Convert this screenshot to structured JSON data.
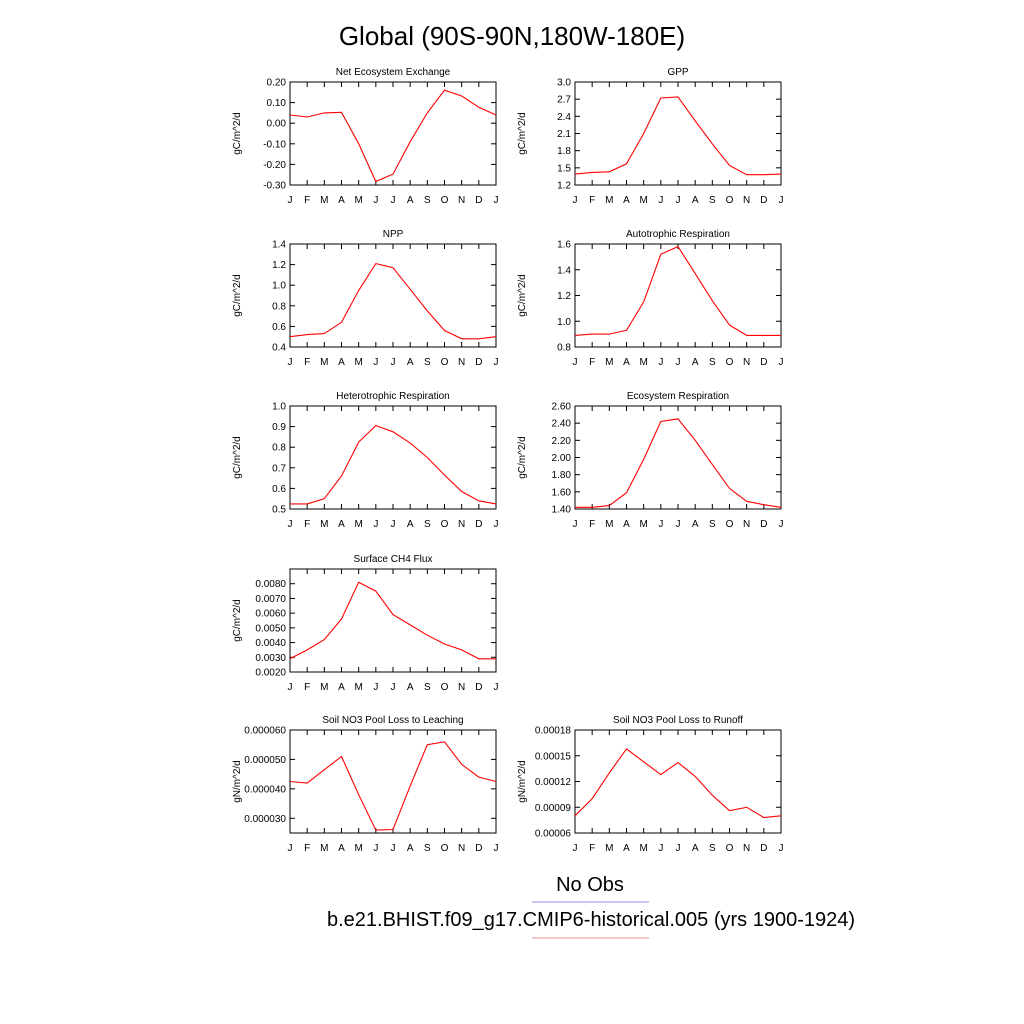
{
  "figure": {
    "title": "Global (90S-90N,180W-180E)",
    "legend": {
      "entries": [
        {
          "label": "No Obs",
          "color": "#8c8cf0"
        },
        {
          "label": "b.e21.BHIST.f09_g17.CMIP6-historical.005 (yrs 1900-1924)",
          "color": "#f08c8c"
        }
      ]
    }
  },
  "chart_data": [
    {
      "type": "line",
      "title": "Net Ecosystem Exchange",
      "ylabel": "gC/m^2/d",
      "x": [
        "J",
        "F",
        "M",
        "A",
        "M",
        "J",
        "J",
        "A",
        "S",
        "O",
        "N",
        "D",
        "J"
      ],
      "ylim": [
        -0.3,
        0.2
      ],
      "yticks": [
        "0.20",
        "0.10",
        "0.00",
        "-0.10",
        "-0.20",
        "-0.30"
      ],
      "series": [
        {
          "values": [
            0.04,
            0.03,
            0.05,
            0.053,
            -0.1,
            -0.283,
            -0.247,
            -0.09,
            0.05,
            0.16,
            0.132,
            0.077,
            0.04
          ],
          "color": "#ff0000"
        }
      ]
    },
    {
      "type": "line",
      "title": "GPP",
      "ylabel": "gC/m^2/d",
      "x": [
        "J",
        "F",
        "M",
        "A",
        "M",
        "J",
        "J",
        "A",
        "S",
        "O",
        "N",
        "D",
        "J"
      ],
      "ylim": [
        1.2,
        3.0
      ],
      "yticks": [
        "3.0",
        "2.7",
        "2.4",
        "2.1",
        "1.8",
        "1.5",
        "1.2"
      ],
      "series": [
        {
          "values": [
            1.39,
            1.42,
            1.43,
            1.57,
            2.1,
            2.72,
            2.74,
            2.32,
            1.92,
            1.54,
            1.38,
            1.38,
            1.39
          ],
          "color": "#ff0000"
        }
      ]
    },
    {
      "type": "line",
      "title": "NPP",
      "ylabel": "gC/m^2/d",
      "x": [
        "J",
        "F",
        "M",
        "A",
        "M",
        "J",
        "J",
        "A",
        "S",
        "O",
        "N",
        "D",
        "J"
      ],
      "ylim": [
        0.4,
        1.4
      ],
      "yticks": [
        "1.4",
        "1.2",
        "1.0",
        "0.8",
        "0.6",
        "0.4"
      ],
      "series": [
        {
          "values": [
            0.5,
            0.52,
            0.53,
            0.64,
            0.95,
            1.21,
            1.17,
            0.96,
            0.75,
            0.56,
            0.48,
            0.48,
            0.5
          ],
          "color": "#ff0000"
        }
      ]
    },
    {
      "type": "line",
      "title": "Autotrophic Respiration",
      "ylabel": "gC/m^2/d",
      "x": [
        "J",
        "F",
        "M",
        "A",
        "M",
        "J",
        "J",
        "A",
        "S",
        "O",
        "N",
        "D",
        "J"
      ],
      "ylim": [
        0.8,
        1.6
      ],
      "yticks": [
        "1.6",
        "1.4",
        "1.2",
        "1.0",
        "0.8"
      ],
      "series": [
        {
          "values": [
            0.89,
            0.9,
            0.9,
            0.93,
            1.15,
            1.52,
            1.58,
            1.37,
            1.16,
            0.97,
            0.89,
            0.89,
            0.89
          ],
          "color": "#ff0000"
        }
      ]
    },
    {
      "type": "line",
      "title": "Heterotrophic Respiration",
      "ylabel": "gC/m^2/d",
      "x": [
        "J",
        "F",
        "M",
        "A",
        "M",
        "J",
        "J",
        "A",
        "S",
        "O",
        "N",
        "D",
        "J"
      ],
      "ylim": [
        0.5,
        1.0
      ],
      "yticks": [
        "1.0",
        "0.9",
        "0.8",
        "0.7",
        "0.6",
        "0.5"
      ],
      "series": [
        {
          "values": [
            0.525,
            0.525,
            0.55,
            0.66,
            0.825,
            0.905,
            0.875,
            0.82,
            0.75,
            0.665,
            0.585,
            0.54,
            0.525
          ],
          "color": "#ff0000"
        }
      ]
    },
    {
      "type": "line",
      "title": "Ecosystem Respiration",
      "ylabel": "gC/m^2/d",
      "x": [
        "J",
        "F",
        "M",
        "A",
        "M",
        "J",
        "J",
        "A",
        "S",
        "O",
        "N",
        "D",
        "J"
      ],
      "ylim": [
        1.4,
        2.6
      ],
      "yticks": [
        "2.60",
        "2.40",
        "2.20",
        "2.00",
        "1.80",
        "1.60",
        "1.40"
      ],
      "series": [
        {
          "values": [
            1.42,
            1.42,
            1.44,
            1.59,
            1.98,
            2.42,
            2.45,
            2.2,
            1.92,
            1.64,
            1.49,
            1.45,
            1.42
          ],
          "color": "#ff0000"
        }
      ]
    },
    {
      "type": "line",
      "title": "Surface CH4 Flux",
      "ylabel": "gC/m^2/d",
      "x": [
        "J",
        "F",
        "M",
        "A",
        "M",
        "J",
        "J",
        "A",
        "S",
        "O",
        "N",
        "D",
        "J"
      ],
      "ylim": [
        0.002,
        0.009
      ],
      "yticks": [
        "0.0080",
        "0.0070",
        "0.0060",
        "0.0050",
        "0.0040",
        "0.0030",
        "0.0020"
      ],
      "series": [
        {
          "values": [
            0.0029,
            0.0035,
            0.0042,
            0.0056,
            0.0081,
            0.0075,
            0.0059,
            0.0052,
            0.0045,
            0.0039,
            0.0035,
            0.0029,
            0.0029
          ],
          "color": "#ff0000"
        }
      ]
    },
    {
      "type": "line",
      "title": "Soil NO3 Pool Loss to Leaching",
      "ylabel": "gN/m^2/d",
      "x": [
        "J",
        "F",
        "M",
        "A",
        "M",
        "J",
        "J",
        "A",
        "S",
        "O",
        "N",
        "D",
        "J"
      ],
      "ylim": [
        2.5e-05,
        6e-05
      ],
      "yticks": [
        "0.000060",
        "0.000050",
        "0.000040",
        "0.000030"
      ],
      "series": [
        {
          "values": [
            4.25e-05,
            4.2e-05,
            4.65e-05,
            5.1e-05,
            3.8e-05,
            2.6e-05,
            2.62e-05,
            4.1e-05,
            5.5e-05,
            5.6e-05,
            4.83e-05,
            4.4e-05,
            4.25e-05
          ],
          "color": "#ff0000"
        }
      ]
    },
    {
      "type": "line",
      "title": "Soil NO3 Pool Loss to Runoff",
      "ylabel": "gN/m^2/d",
      "x": [
        "J",
        "F",
        "M",
        "A",
        "M",
        "J",
        "J",
        "A",
        "S",
        "O",
        "N",
        "D",
        "J"
      ],
      "ylim": [
        6e-05,
        0.00018
      ],
      "yticks": [
        "0.00018",
        "0.00015",
        "0.00012",
        "0.00009",
        "0.00006"
      ],
      "series": [
        {
          "values": [
            8e-05,
            0.0001,
            0.00013,
            0.000158,
            0.000143,
            0.000128,
            0.000142,
            0.000126,
            0.000104,
            8.6e-05,
            9e-05,
            7.8e-05,
            8e-05
          ],
          "color": "#ff0000"
        }
      ]
    }
  ]
}
